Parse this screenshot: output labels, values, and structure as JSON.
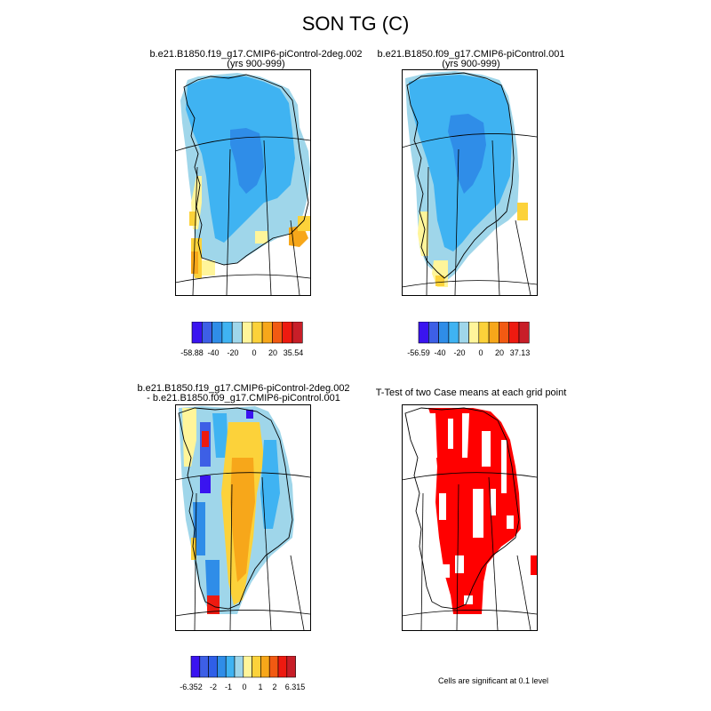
{
  "figure": {
    "title": "SON TG (C)"
  },
  "panels": {
    "top_left": {
      "title_line1": "b.e21.B1850.f19_g17.CMIP6-piControl-2deg.002",
      "title_line2": "(yrs 900-999)"
    },
    "top_right": {
      "title_line1": "b.e21.B1850.f09_g17.CMIP6-piControl.001",
      "title_line2": "(yrs 900-999)"
    },
    "bottom_left": {
      "title_line1": "b.e21.B1850.f19_g17.CMIP6-piControl-2deg.002",
      "title_line2": "- b.e21.B1850.f09_g17.CMIP6-piControl.001"
    },
    "bottom_right": {
      "title_line1": "T-Test of two Case means at each grid point",
      "note": "Cells are significant at 0.1 level"
    }
  },
  "colorbars": {
    "top_left": {
      "colors": [
        "#3a14f0",
        "#3d5fe6",
        "#2f8de8",
        "#3fb3f2",
        "#9fd6ea",
        "#fff59a",
        "#fcd23a",
        "#f7a71a",
        "#f25a12",
        "#ee1a10",
        "#c81e28"
      ],
      "labels": [
        "-58.88",
        "-40",
        "-20",
        "0",
        "20",
        "35.54"
      ]
    },
    "top_right": {
      "colors": [
        "#3a14f0",
        "#3d5fe6",
        "#2f8de8",
        "#3fb3f2",
        "#9fd6ea",
        "#fff59a",
        "#fcd23a",
        "#f7a71a",
        "#f25a12",
        "#ee1a10",
        "#c81e28"
      ],
      "labels": [
        "-56.59",
        "-40",
        "-20",
        "0",
        "20",
        "37.13"
      ]
    },
    "bottom_left": {
      "colors": [
        "#3a14f0",
        "#3d5fe6",
        "#2f5fe8",
        "#2f8de8",
        "#3fb3f2",
        "#9fd6ea",
        "#fff59a",
        "#fcd23a",
        "#f7a71a",
        "#f25a12",
        "#ee1a10",
        "#c81e28"
      ],
      "labels": [
        "-6.352",
        "-2",
        "-1",
        "0",
        "1",
        "2",
        "6.315"
      ]
    }
  }
}
